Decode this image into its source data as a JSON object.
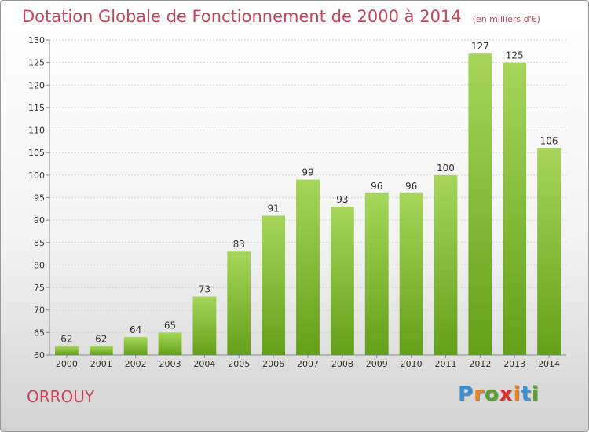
{
  "header": {
    "title": "Dotation Globale de Fonctionnement de 2000 à 2014",
    "unit": "(en milliers d'€)"
  },
  "footer": {
    "commune": "ORROUY",
    "brand_letters": [
      "P",
      "r",
      "o",
      "x",
      "i",
      "t",
      "i"
    ],
    "brand_colors": [
      "#3a8fd6",
      "#e8831f",
      "#5aa12c",
      "#d9322f",
      "#e8831f",
      "#3a8fd6",
      "#5aa12c"
    ]
  },
  "colors": {
    "bar_light": "#a6d65a",
    "bar_dark": "#64a019",
    "text": "#333333",
    "grid": "#d4d4d4",
    "title": "#c8455a"
  },
  "chart_data": {
    "type": "bar",
    "categories": [
      "2000",
      "2001",
      "2002",
      "2003",
      "2004",
      "2005",
      "2006",
      "2007",
      "2008",
      "2009",
      "2010",
      "2011",
      "2012",
      "2013",
      "2014"
    ],
    "values": [
      62,
      62,
      64,
      65,
      73,
      83,
      91,
      99,
      93,
      96,
      96,
      100,
      127,
      125,
      106
    ],
    "title": "Dotation Globale de Fonctionnement de 2000 à 2014",
    "subtitle": "(en milliers d'€)",
    "xlabel": "",
    "ylabel": "",
    "ylim": [
      60,
      130
    ],
    "yticks": [
      60,
      65,
      70,
      75,
      80,
      85,
      90,
      95,
      100,
      105,
      110,
      115,
      120,
      125,
      130
    ],
    "grid": true,
    "data_labels": true
  }
}
